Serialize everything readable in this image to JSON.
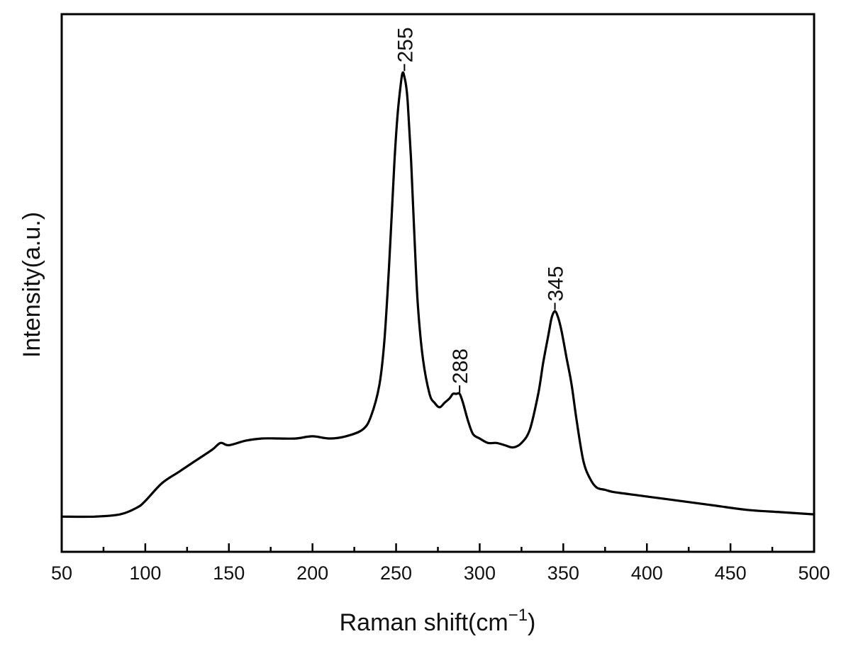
{
  "chart_data": {
    "type": "line",
    "title": "",
    "xlabel": "Raman shift(cm",
    "xlabel_sup": "−1",
    "xlabel_close": ")",
    "ylabel": "Intensity(a.u.)",
    "xlim": [
      50,
      500
    ],
    "ylim": [
      0,
      1
    ],
    "grid": false,
    "legend": "none",
    "x_ticks": [
      50,
      100,
      150,
      200,
      250,
      300,
      350,
      400,
      450,
      500
    ],
    "x_tick_labels": [
      "50",
      "100",
      "150",
      "200",
      "250",
      "300",
      "350",
      "400",
      "450",
      "500"
    ],
    "y_ticks_shown": false,
    "line_color": "#000000",
    "series": [
      {
        "x": [
          50,
          70,
          85,
          95,
          100,
          110,
          120,
          130,
          140,
          145,
          150,
          160,
          170,
          180,
          190,
          200,
          210,
          220,
          230,
          235,
          240,
          243,
          246,
          249,
          251,
          253,
          254,
          255,
          256,
          257,
          259,
          261,
          263,
          266,
          270,
          273,
          276,
          279,
          282,
          284,
          286,
          288,
          290,
          293,
          296,
          300,
          305,
          310,
          315,
          320,
          325,
          330,
          335,
          338,
          341,
          343,
          345,
          347,
          349,
          352,
          355,
          358,
          362,
          366,
          370,
          375,
          380,
          390,
          400,
          420,
          440,
          460,
          480,
          500
        ],
        "y": [
          0.025,
          0.025,
          0.03,
          0.045,
          0.06,
          0.1,
          0.125,
          0.15,
          0.175,
          0.19,
          0.185,
          0.195,
          0.2,
          0.2,
          0.2,
          0.205,
          0.2,
          0.205,
          0.22,
          0.25,
          0.32,
          0.42,
          0.6,
          0.82,
          0.93,
          1.0,
          1.02,
          1.01,
          0.99,
          0.95,
          0.82,
          0.65,
          0.5,
          0.38,
          0.3,
          0.28,
          0.27,
          0.28,
          0.29,
          0.3,
          0.3,
          0.3,
          0.28,
          0.24,
          0.21,
          0.2,
          0.19,
          0.19,
          0.185,
          0.18,
          0.19,
          0.22,
          0.3,
          0.37,
          0.43,
          0.47,
          0.485,
          0.47,
          0.44,
          0.38,
          0.32,
          0.24,
          0.15,
          0.11,
          0.09,
          0.085,
          0.08,
          0.075,
          0.07,
          0.06,
          0.05,
          0.04,
          0.035,
          0.03
        ]
      }
    ],
    "annotations": [
      {
        "text": "255",
        "x": 255,
        "y": 1.02
      },
      {
        "text": "288",
        "x": 288,
        "y": 0.3
      },
      {
        "text": "345",
        "x": 345,
        "y": 0.485
      }
    ]
  }
}
